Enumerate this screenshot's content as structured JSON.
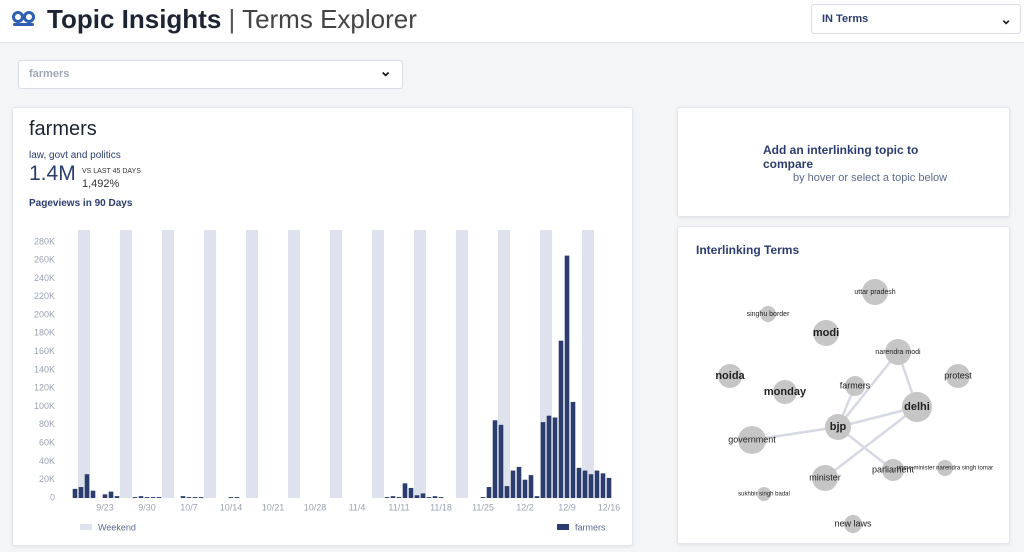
{
  "header": {
    "title": "Topic Insights",
    "separator": "|",
    "subtitle": "Terms Explorer",
    "market_select": "IN Terms"
  },
  "topic_select": "farmers",
  "topic_card": {
    "name": "farmers",
    "category": "law, govt and politics",
    "total": "1.4M",
    "comparison_label": "VS LAST 45 DAYS",
    "change": "1,492%",
    "chart_label": "Pageviews in 90 Days"
  },
  "chart_data": {
    "type": "bar",
    "categories": [
      null,
      null,
      null,
      null,
      null,
      "9/23",
      null,
      null,
      null,
      null,
      null,
      null,
      "9/30",
      null,
      null,
      null,
      null,
      null,
      null,
      "10/7",
      null,
      null,
      null,
      null,
      null,
      null,
      "10/14",
      null,
      null,
      null,
      null,
      null,
      null,
      "10/21",
      null,
      null,
      null,
      null,
      null,
      null,
      "10/28",
      null,
      null,
      null,
      null,
      null,
      null,
      "11/4",
      null,
      null,
      null,
      null,
      null,
      null,
      "11/11",
      null,
      null,
      null,
      null,
      null,
      null,
      "11/18",
      null,
      null,
      null,
      null,
      null,
      null,
      "11/25",
      null,
      null,
      null,
      null,
      null,
      null,
      "12/2",
      null,
      null,
      null,
      null,
      null,
      null,
      "12/9",
      null,
      null,
      null,
      null,
      null,
      null,
      "12/16"
    ],
    "series": [
      {
        "name": "farmers",
        "color": "#2b3d6e",
        "values": [
          10000,
          12000,
          26000,
          8000,
          0,
          4000,
          7000,
          2000,
          0,
          0,
          1000,
          2000,
          1000,
          1000,
          1000,
          0,
          0,
          0,
          2000,
          1000,
          1000,
          1000,
          0,
          0,
          0,
          0,
          1000,
          1000,
          0,
          0,
          0,
          0,
          0,
          0,
          0,
          0,
          0,
          0,
          0,
          0,
          0,
          0,
          0,
          0,
          0,
          0,
          0,
          0,
          0,
          0,
          0,
          0,
          1000,
          2000,
          1000,
          16000,
          11000,
          3000,
          5000,
          1000,
          2000,
          1000,
          0,
          0,
          0,
          0,
          0,
          0,
          1000,
          12000,
          85000,
          80000,
          13000,
          30000,
          34000,
          20000,
          25000,
          2000,
          83000,
          90000,
          88000,
          172000,
          265000,
          105000,
          33000,
          30000,
          26000,
          30000,
          27000,
          22000
        ]
      }
    ],
    "weekend": {
      "name": "Weekend",
      "color": "#dde2ec",
      "days": [
        1,
        2,
        8,
        9,
        15,
        16,
        22,
        23,
        29,
        30,
        36,
        37,
        43,
        44,
        50,
        51,
        57,
        58,
        64,
        65,
        71,
        72,
        78,
        79,
        85,
        86
      ]
    },
    "ylim": [
      0,
      293000
    ],
    "yticks": [
      0,
      {
        "value": 20000,
        "label": "20K"
      },
      {
        "value": 40000,
        "label": "40K"
      },
      {
        "value": 60000,
        "label": "60K"
      },
      {
        "value": 80000,
        "label": "80K"
      },
      {
        "value": 100000,
        "label": "100K"
      },
      {
        "value": 120000,
        "label": "120K"
      },
      {
        "value": 140000,
        "label": "140K"
      },
      {
        "value": 160000,
        "label": "160K"
      },
      {
        "value": 180000,
        "label": "180K"
      },
      {
        "value": 200000,
        "label": "200K"
      },
      {
        "value": 220000,
        "label": "220K"
      },
      {
        "value": 240000,
        "label": "240K"
      },
      {
        "value": 260000,
        "label": "260K"
      },
      {
        "value": 280000,
        "label": "280K"
      }
    ],
    "grid": false
  },
  "compare_card": {
    "title": "Add an interlinking topic to compare",
    "hint": "by hover or select a topic below"
  },
  "network": {
    "title": "Interlinking Terms",
    "nodes": [
      "uttar pradesh",
      "singhu border",
      "modi",
      "narendra modi",
      "noida",
      "protest",
      "monday",
      "farmers",
      "delhi",
      "government",
      "bjp",
      "minister",
      "parliament",
      "prime minister narendra singh tomar",
      "sukhbir singh badal",
      "new laws"
    ]
  }
}
